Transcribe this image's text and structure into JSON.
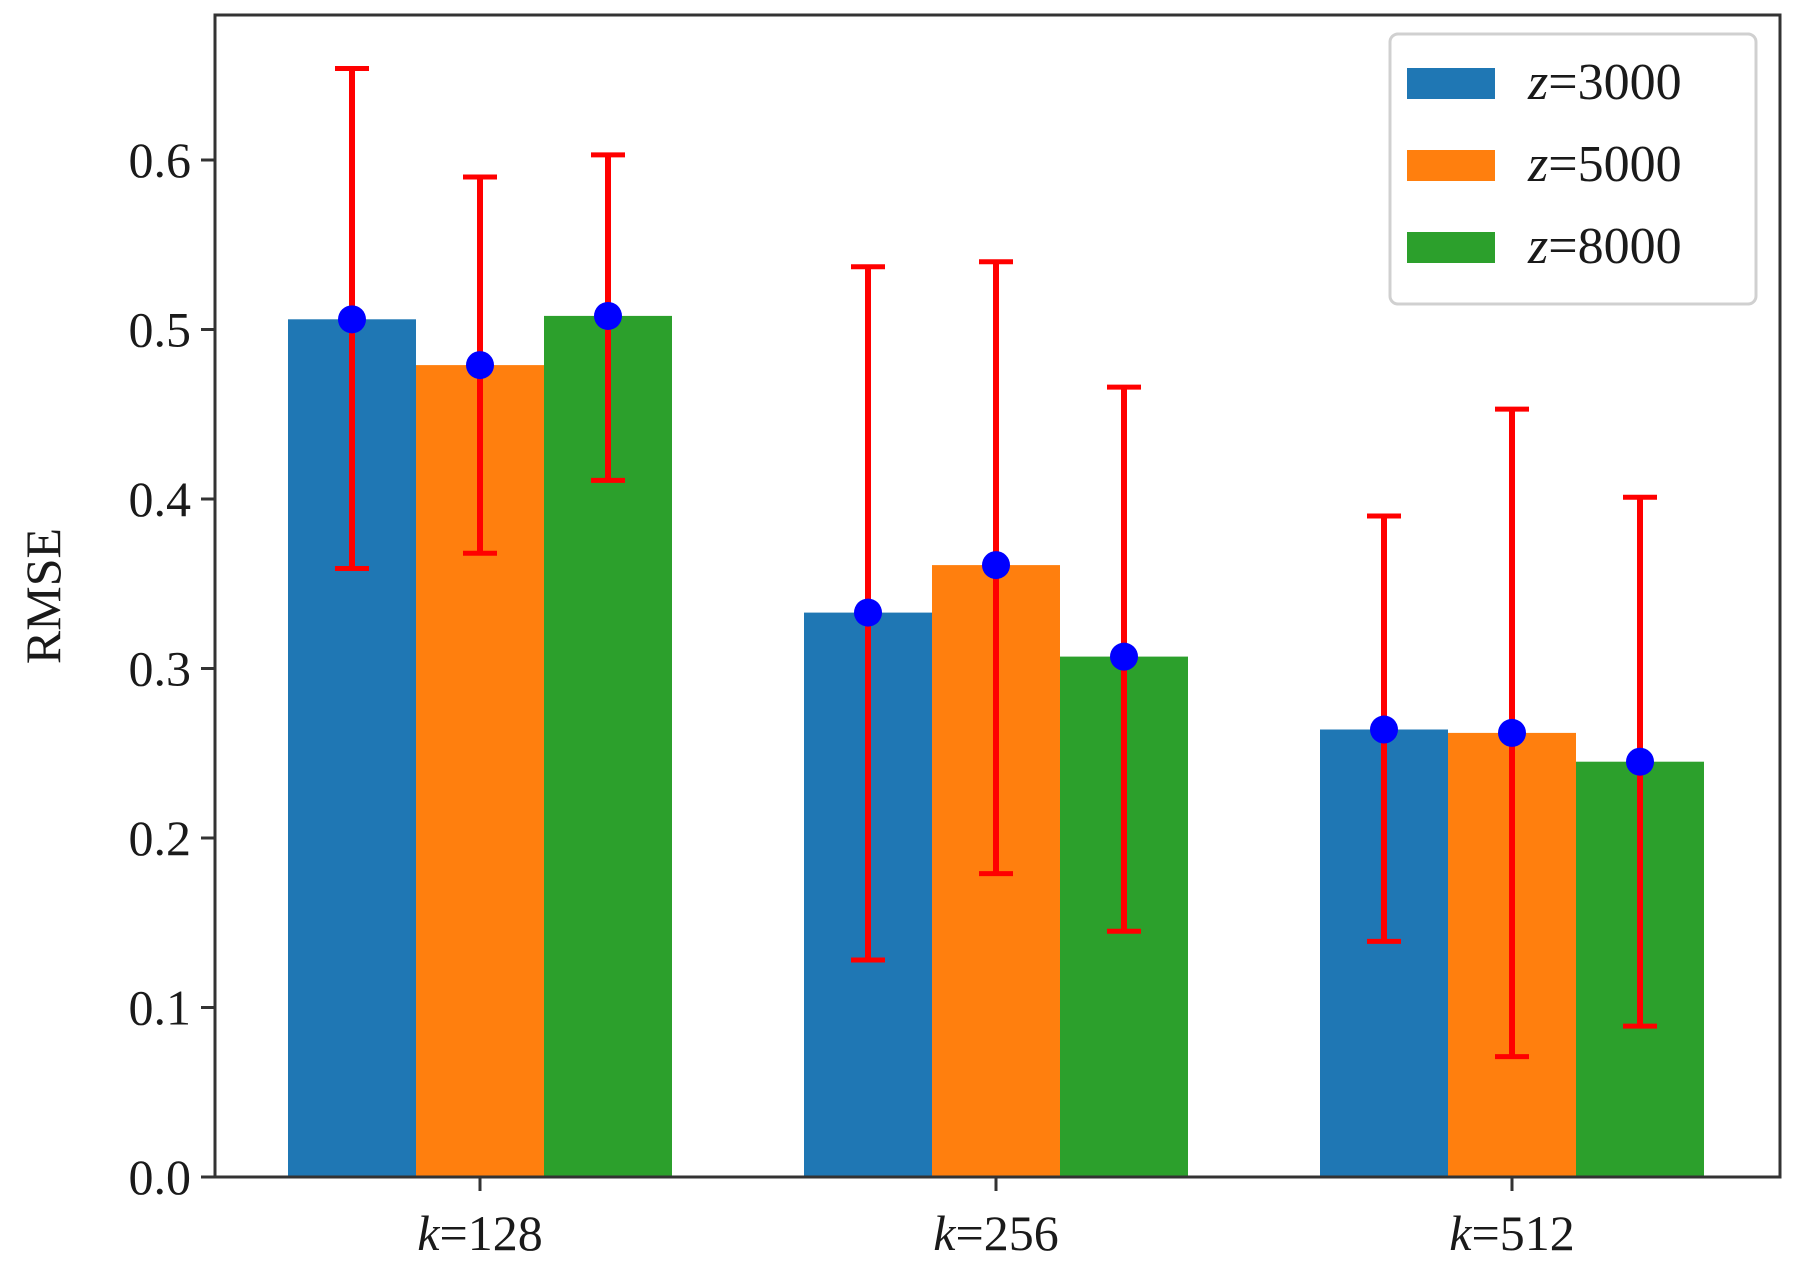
{
  "chart_data": {
    "type": "bar",
    "title": "",
    "xlabel": "",
    "ylabel": "RMSE",
    "ylim": [
      0,
      0.69
    ],
    "yticks": [
      "0.0",
      "0.1",
      "0.2",
      "0.3",
      "0.4",
      "0.5",
      "0.6"
    ],
    "categories": [
      {
        "var": "k",
        "rest": "=128"
      },
      {
        "var": "k",
        "rest": "=256"
      },
      {
        "var": "k",
        "rest": "=512"
      }
    ],
    "series": [
      {
        "name": {
          "var": "z",
          "rest": "=3000"
        },
        "color": "#1f77b4",
        "values": [
          0.506,
          0.333,
          0.264
        ],
        "err_low": [
          0.359,
          0.128,
          0.139
        ],
        "err_high": [
          0.654,
          0.537,
          0.39
        ]
      },
      {
        "name": {
          "var": "z",
          "rest": "=5000"
        },
        "color": "#ff7f0e",
        "values": [
          0.479,
          0.361,
          0.262
        ],
        "err_low": [
          0.368,
          0.179,
          0.071
        ],
        "err_high": [
          0.59,
          0.54,
          0.453
        ]
      },
      {
        "name": {
          "var": "z",
          "rest": "=8000"
        },
        "color": "#2ca02c",
        "values": [
          0.508,
          0.307,
          0.245
        ],
        "err_low": [
          0.411,
          0.145,
          0.089
        ],
        "err_high": [
          0.603,
          0.466,
          0.401
        ]
      }
    ],
    "error_bar_color": "#ff0000",
    "marker_color": "#0000ff",
    "legend_position": "upper right",
    "grid": false
  }
}
